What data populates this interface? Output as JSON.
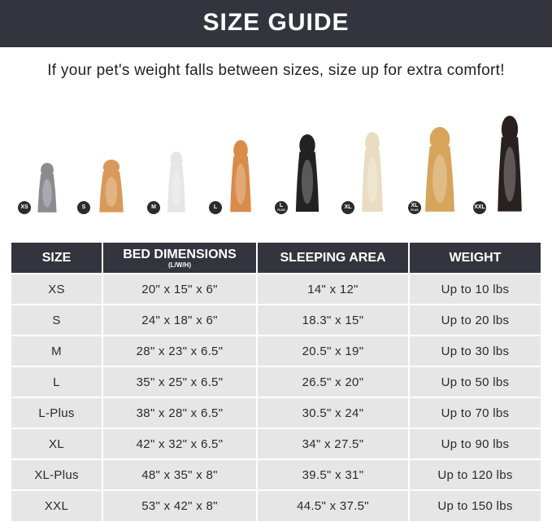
{
  "title": "SIZE GUIDE",
  "subtitle": "If your pet's weight falls between sizes, size up for extra comfort!",
  "pets": [
    {
      "badge": "XS",
      "plus": "",
      "animal": "cat",
      "color": "#8a8c90"
    },
    {
      "badge": "S",
      "plus": "",
      "animal": "pomeranian",
      "color": "#d89a5a"
    },
    {
      "badge": "M",
      "plus": "",
      "animal": "french-bulldog",
      "color": "#e6e6e6"
    },
    {
      "badge": "L",
      "plus": "",
      "animal": "shiba-inu",
      "color": "#d98b49"
    },
    {
      "badge": "L",
      "plus": "PLUS",
      "animal": "border-collie",
      "color": "#222222"
    },
    {
      "badge": "XL",
      "plus": "",
      "animal": "labrador",
      "color": "#e8dcc2"
    },
    {
      "badge": "XL",
      "plus": "PLUS",
      "animal": "golden-retriever",
      "color": "#d6a45a"
    },
    {
      "badge": "XXL",
      "plus": "",
      "animal": "doberman",
      "color": "#2a2020"
    }
  ],
  "table": {
    "headers": [
      "SIZE",
      "BED DIMENSIONS",
      "SLEEPING AREA",
      "WEIGHT"
    ],
    "header_note": "(L/W/H)",
    "rows": [
      [
        "XS",
        "20\" x 15\" x 6\"",
        "14\" x 12\"",
        "Up to 10 lbs"
      ],
      [
        "S",
        "24\" x 18\" x 6\"",
        "18.3\" x 15\"",
        "Up to 20 lbs"
      ],
      [
        "M",
        "28\" x 23\" x 6.5\"",
        "20.5\" x 19\"",
        "Up to 30 lbs"
      ],
      [
        "L",
        "35\" x 25\" x 6.5\"",
        "26.5\" x 20\"",
        "Up to 50 lbs"
      ],
      [
        "L-Plus",
        "38\" x 28\" x 6.5\"",
        "30.5\" x 24\"",
        "Up to 70 lbs"
      ],
      [
        "XL",
        "42\" x 32\" x 6.5\"",
        "34\" x 27.5\"",
        "Up to 90 lbs"
      ],
      [
        "XL-Plus",
        "48\" x 35\" x 8\"",
        "39.5\" x 31\"",
        "Up to 120 lbs"
      ],
      [
        "XXL",
        "53\" x 42\" x 8\"",
        "44.5\" x 37.5\"",
        "Up to 150 lbs"
      ]
    ]
  }
}
